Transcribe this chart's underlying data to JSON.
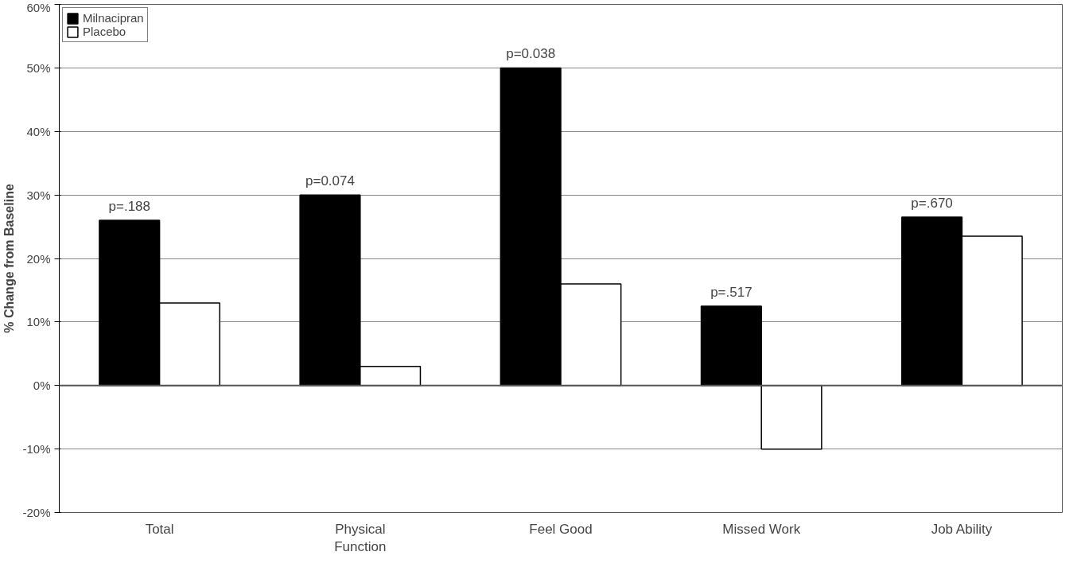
{
  "chart_data": {
    "type": "bar",
    "ylabel": "% Change from Baseline",
    "categories": [
      "Total",
      "Physical\nFunction",
      "Feel Good",
      "Missed Work",
      "Job Ability"
    ],
    "series": [
      {
        "name": "Milnacipran",
        "color": "#000000",
        "values": [
          26,
          30,
          50,
          12.5,
          26.5
        ]
      },
      {
        "name": "Placebo",
        "color": "#ffffff",
        "values": [
          13,
          3,
          16,
          -10,
          23.5
        ]
      }
    ],
    "ylim": [
      -20,
      60
    ],
    "yticks": [
      {
        "value": -20,
        "label": "-20%"
      },
      {
        "value": -10,
        "label": "-10%"
      },
      {
        "value": 0,
        "label": "0%"
      },
      {
        "value": 10,
        "label": "10%"
      },
      {
        "value": 20,
        "label": "20%"
      },
      {
        "value": 30,
        "label": "30%"
      },
      {
        "value": 40,
        "label": "40%"
      },
      {
        "value": 50,
        "label": "50%"
      },
      {
        "value": 60,
        "label": "60%"
      }
    ],
    "grid": "y",
    "legend": "top left",
    "annotations": [
      {
        "text": "p=.188",
        "x": "Total",
        "y": 26
      },
      {
        "text": "p=0.074",
        "x": "Physical\nFunction",
        "y": 30
      },
      {
        "text": "p=0.038",
        "x": "Feel Good",
        "y": 50
      },
      {
        "text": "p=.517",
        "x": "Missed Work",
        "y": 12.5
      },
      {
        "text": "p=.670",
        "x": "Job Ability",
        "y": 26.5
      }
    ]
  }
}
